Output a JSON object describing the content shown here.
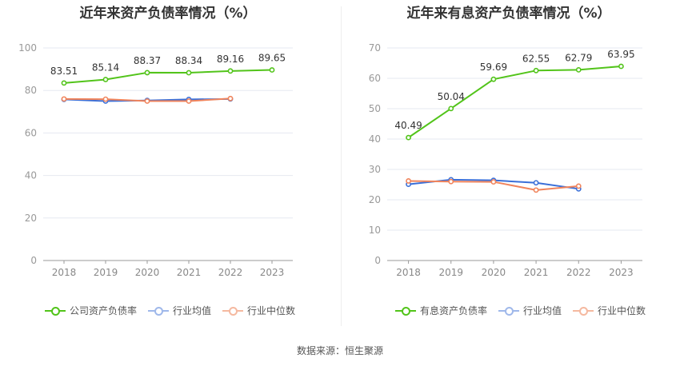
{
  "chart_data": [
    {
      "type": "line",
      "title": "近年来资产负债率情况（%）",
      "categories": [
        "2018",
        "2019",
        "2020",
        "2021",
        "2022",
        "2023"
      ],
      "ylim": [
        0,
        100
      ],
      "yticks": [
        0,
        20,
        40,
        60,
        80,
        100
      ],
      "series": [
        {
          "name": "公司资产负债率",
          "color": "#52c41a",
          "values": [
            83.51,
            85.14,
            88.37,
            88.34,
            89.16,
            89.65
          ],
          "labels": [
            "83.51",
            "85.14",
            "88.37",
            "88.34",
            "89.16",
            "89.65"
          ],
          "show_labels": true
        },
        {
          "name": "行业均值",
          "color": "#3a6fd8",
          "values": [
            75.8,
            75.0,
            75.3,
            75.8,
            76.0,
            null
          ]
        },
        {
          "name": "行业中位数",
          "color": "#f0845c",
          "values": [
            76.0,
            75.9,
            75.0,
            75.0,
            76.2,
            null
          ]
        }
      ]
    },
    {
      "type": "line",
      "title": "近年来有息资产负债率情况（%）",
      "categories": [
        "2018",
        "2019",
        "2020",
        "2021",
        "2022",
        "2023"
      ],
      "ylim": [
        0,
        70
      ],
      "yticks": [
        0,
        10,
        20,
        30,
        40,
        50,
        60,
        70
      ],
      "series": [
        {
          "name": "有息资产负债率",
          "color": "#52c41a",
          "values": [
            40.49,
            50.04,
            59.69,
            62.55,
            62.79,
            63.95
          ],
          "labels": [
            "40.49",
            "50.04",
            "59.69",
            "62.55",
            "62.79",
            "63.95"
          ],
          "show_labels": true
        },
        {
          "name": "行业均值",
          "color": "#3a6fd8",
          "values": [
            25.1,
            26.6,
            26.4,
            25.6,
            23.6,
            null
          ]
        },
        {
          "name": "行业中位数",
          "color": "#f0845c",
          "values": [
            26.2,
            26.0,
            25.9,
            23.2,
            24.5,
            null
          ]
        }
      ]
    }
  ],
  "source_text": "数据来源：恒生聚源"
}
